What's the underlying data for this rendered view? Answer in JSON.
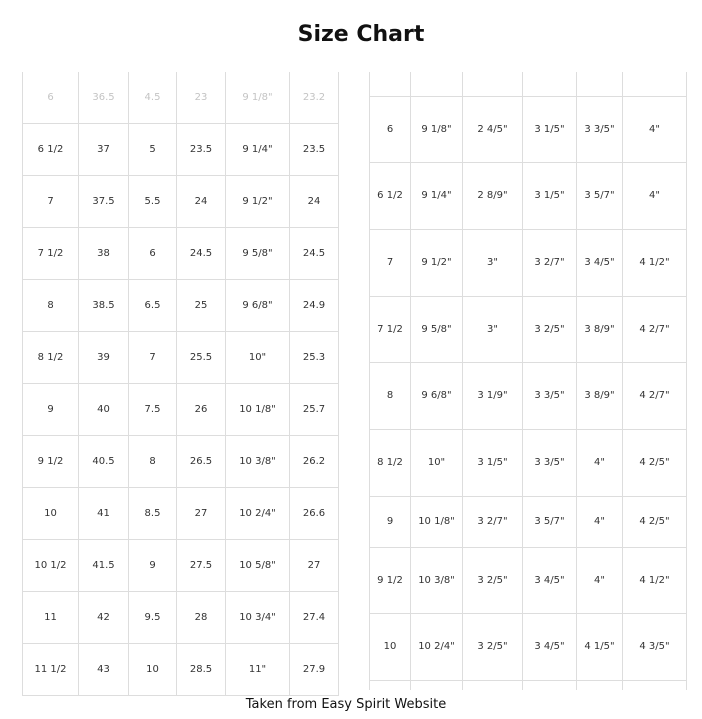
{
  "title": "Size Chart",
  "caption": "Taken from Easy Spirit Website",
  "left_table": {
    "rows": [
      [
        "6",
        "36.5",
        "4.5",
        "23",
        "9 1/8\"",
        "23.2"
      ],
      [
        "6 1/2",
        "37",
        "5",
        "23.5",
        "9 1/4\"",
        "23.5"
      ],
      [
        "7",
        "37.5",
        "5.5",
        "24",
        "9 1/2\"",
        "24"
      ],
      [
        "7 1/2",
        "38",
        "6",
        "24.5",
        "9 5/8\"",
        "24.5"
      ],
      [
        "8",
        "38.5",
        "6.5",
        "25",
        "9 6/8\"",
        "24.9"
      ],
      [
        "8 1/2",
        "39",
        "7",
        "25.5",
        "10\"",
        "25.3"
      ],
      [
        "9",
        "40",
        "7.5",
        "26",
        "10 1/8\"",
        "25.7"
      ],
      [
        "9 1/2",
        "40.5",
        "8",
        "26.5",
        "10 3/8\"",
        "26.2"
      ],
      [
        "10",
        "41",
        "8.5",
        "27",
        "10 2/4\"",
        "26.6"
      ],
      [
        "10 1/2",
        "41.5",
        "9",
        "27.5",
        "10 5/8\"",
        "27"
      ],
      [
        "11",
        "42",
        "9.5",
        "28",
        "10 3/4\"",
        "27.4"
      ],
      [
        "11 1/2",
        "43",
        "10",
        "28.5",
        "11\"",
        "27.9"
      ]
    ]
  },
  "right_table": {
    "rows": [
      [
        "6",
        "9 1/8\"",
        "2 4/5\"",
        "3 1/5\"",
        "3 3/5\"",
        "4\""
      ],
      [
        "6 1/2",
        "9 1/4\"",
        "2 8/9\"",
        "3 1/5\"",
        "3 5/7\"",
        "4\""
      ],
      [
        "7",
        "9 1/2\"",
        "3\"",
        "3 2/7\"",
        "3 4/5\"",
        "4 1/2\""
      ],
      [
        "7 1/2",
        "9 5/8\"",
        "3\"",
        "3 2/5\"",
        "3 8/9\"",
        "4 2/7\""
      ],
      [
        "8",
        "9 6/8\"",
        "3 1/9\"",
        "3 3/5\"",
        "3 8/9\"",
        "4 2/7\""
      ],
      [
        "8 1/2",
        "10\"",
        "3 1/5\"",
        "3 3/5\"",
        "4\"",
        "4 2/5\""
      ],
      [
        "9",
        "10 1/8\"",
        "3 2/7\"",
        "3 5/7\"",
        "4\"",
        "4 2/5\""
      ],
      [
        "9 1/2",
        "10 3/8\"",
        "3 2/5\"",
        "3 4/5\"",
        "4\"",
        "4 1/2\""
      ],
      [
        "10",
        "10 2/4\"",
        "3 2/5\"",
        "3 4/5\"",
        "4 1/5\"",
        "4 3/5\""
      ]
    ]
  }
}
